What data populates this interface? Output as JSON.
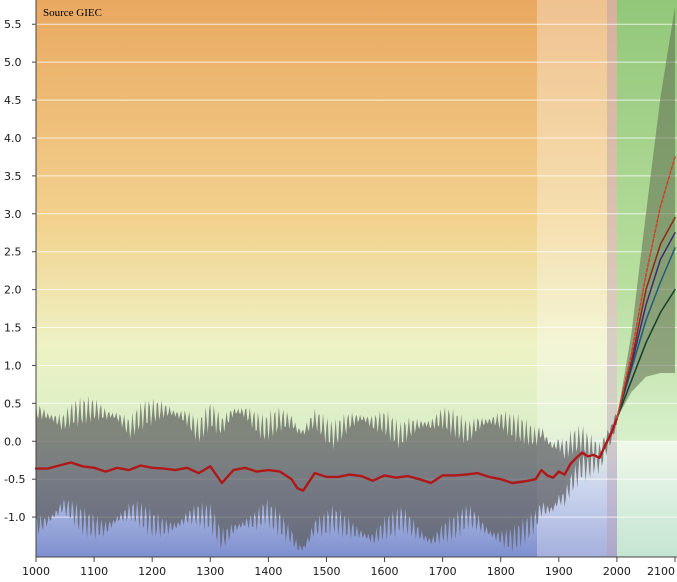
{
  "source_label": "Source GIEC",
  "chart_data": {
    "type": "line",
    "title": "",
    "xlabel": "",
    "ylabel": "",
    "xlim": [
      1000,
      2100
    ],
    "ylim": [
      -1.5,
      5.8
    ],
    "grid": true,
    "x_ticks": [
      1000,
      1100,
      1200,
      1300,
      1400,
      1500,
      1600,
      1700,
      1800,
      1900,
      2000,
      2100
    ],
    "y_ticks": [
      -1.0,
      -0.5,
      0.0,
      0.5,
      1.0,
      1.5,
      2.0,
      2.5,
      3.0,
      3.5,
      4.0,
      4.5,
      5.0,
      5.5
    ],
    "y_tick_labels": [
      "-1.0",
      "-0.5",
      "0.0",
      "0.5",
      "1.0",
      "1.5",
      "2.0",
      "2.5",
      "3.0",
      "3.5",
      "4.0",
      "4.5",
      "5.0",
      "5.5"
    ],
    "colors": {
      "reconstruction": "#b01818",
      "uncertainty": "#5a5a5a",
      "projection_envelope": "#5e6b50",
      "background_warm": "#e9a860",
      "background_cool": "#7f8fcf",
      "projection_panel": "#8fc77a"
    },
    "series": [
      {
        "x": [
          1000,
          1020,
          1040,
          1060,
          1080,
          1100,
          1120,
          1140,
          1160,
          1180,
          1200,
          1220,
          1240,
          1260,
          1280,
          1300,
          1320,
          1340,
          1360,
          1380,
          1400,
          1420,
          1440,
          1450,
          1460,
          1480,
          1500,
          1520,
          1540,
          1560,
          1580,
          1600,
          1620,
          1640,
          1660,
          1680,
          1700,
          1720,
          1740,
          1760,
          1780,
          1800,
          1820,
          1840,
          1860,
          1870,
          1880,
          1890,
          1900,
          1910,
          1920,
          1930,
          1940,
          1950,
          1960,
          1970,
          1980,
          1990,
          2000
        ],
        "values": [
          -0.36,
          -0.36,
          -0.32,
          -0.28,
          -0.33,
          -0.35,
          -0.4,
          -0.35,
          -0.38,
          -0.32,
          -0.35,
          -0.36,
          -0.38,
          -0.35,
          -0.42,
          -0.33,
          -0.55,
          -0.38,
          -0.35,
          -0.4,
          -0.38,
          -0.4,
          -0.5,
          -0.62,
          -0.65,
          -0.42,
          -0.47,
          -0.47,
          -0.44,
          -0.46,
          -0.52,
          -0.45,
          -0.48,
          -0.46,
          -0.5,
          -0.55,
          -0.45,
          -0.45,
          -0.44,
          -0.42,
          -0.47,
          -0.5,
          -0.55,
          -0.53,
          -0.5,
          -0.38,
          -0.45,
          -0.48,
          -0.4,
          -0.44,
          -0.3,
          -0.22,
          -0.15,
          -0.2,
          -0.18,
          -0.22,
          -0.05,
          0.1,
          0.3
        ]
      },
      {
        "x": [
          2000,
          2025,
          2050,
          2075,
          2100
        ],
        "values": [
          0.3,
          0.8,
          1.3,
          1.7,
          2.0
        ]
      },
      {
        "x": [
          2000,
          2025,
          2050,
          2075,
          2100
        ],
        "values": [
          0.3,
          0.95,
          1.6,
          2.1,
          2.55
        ]
      },
      {
        "x": [
          2000,
          2025,
          2050,
          2075,
          2100
        ],
        "values": [
          0.3,
          1.0,
          1.8,
          2.4,
          2.75
        ]
      },
      {
        "x": [
          2000,
          2025,
          2050,
          2075,
          2100
        ],
        "values": [
          0.3,
          1.05,
          2.0,
          2.6,
          2.95
        ]
      },
      {
        "x": [
          2000,
          2025,
          2050,
          2075,
          2100
        ],
        "values": [
          0.3,
          1.15,
          2.2,
          3.1,
          3.75
        ]
      }
    ]
  }
}
